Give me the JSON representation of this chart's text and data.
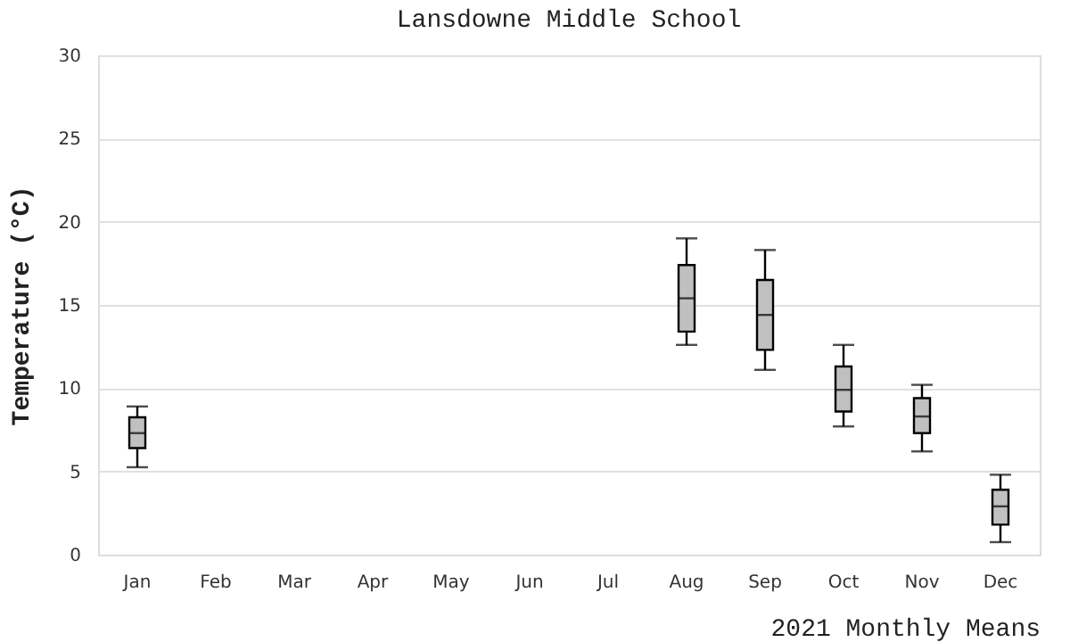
{
  "chart_data": {
    "type": "box",
    "title": "Lansdowne Middle School",
    "xlabel": "2021 Monthly Means",
    "ylabel": "Temperature (°C)",
    "categories": [
      "Jan",
      "Feb",
      "Mar",
      "Apr",
      "May",
      "Jun",
      "Jul",
      "Aug",
      "Sep",
      "Oct",
      "Nov",
      "Dec"
    ],
    "boxes": [
      {
        "low": 5.25,
        "q1": 6.4,
        "median": 7.3,
        "q3": 8.25,
        "high": 8.9
      },
      null,
      null,
      null,
      null,
      null,
      null,
      {
        "low": 12.6,
        "q1": 13.4,
        "median": 15.4,
        "q3": 17.4,
        "high": 19.0
      },
      {
        "low": 11.1,
        "q1": 12.3,
        "median": 14.4,
        "q3": 16.5,
        "high": 18.3
      },
      {
        "low": 7.7,
        "q1": 8.6,
        "median": 9.9,
        "q3": 11.3,
        "high": 12.6
      },
      {
        "low": 6.2,
        "q1": 7.3,
        "median": 8.3,
        "q3": 9.4,
        "high": 10.2
      },
      {
        "low": 0.75,
        "q1": 1.8,
        "median": 2.9,
        "q3": 3.9,
        "high": 4.8
      }
    ],
    "color": "#c0c0c0",
    "ylim": [
      0,
      30
    ],
    "yticks": [
      0,
      5,
      10,
      15,
      20,
      25,
      30
    ],
    "grid": "y"
  }
}
